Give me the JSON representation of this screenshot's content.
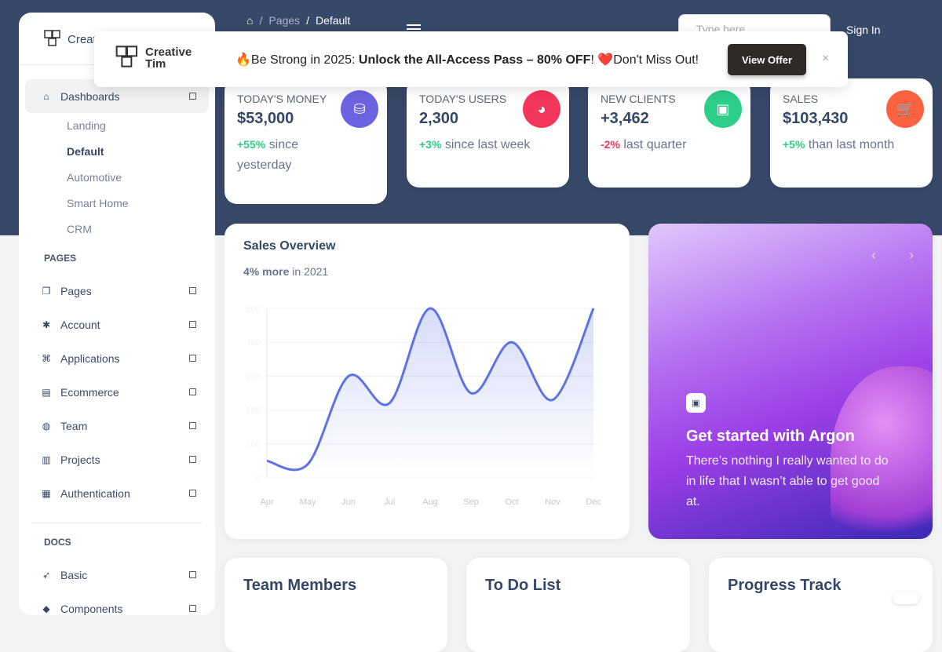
{
  "sidebar": {
    "brand": "Creative Tim",
    "dashboards": "Dashboards",
    "sub": [
      "Landing",
      "Default",
      "Automotive",
      "Smart Home",
      "CRM"
    ],
    "pages_section": "PAGES",
    "items": [
      "Pages",
      "Account",
      "Applications",
      "Ecommerce",
      "Team",
      "Projects",
      "Authentication"
    ],
    "docs_section": "DOCS",
    "docs": [
      "Basic",
      "Components"
    ]
  },
  "header": {
    "crumb_pages": "Pages",
    "crumb_current": "Default",
    "search_placeholder": "Type here...",
    "signin": "Sign In"
  },
  "banner": {
    "logo_line1": "Creative",
    "logo_line2": "Tim",
    "text_pre": "🔥Be Strong in 2025: ",
    "text_bold": "Unlock the All-Access Pass – 80% OFF",
    "text_post": "! ❤️Don't Miss Out!",
    "button": "View Offer",
    "close": "×"
  },
  "stats": [
    {
      "title": "Today's Money",
      "value": "$53,000",
      "change": "+55%",
      "suffix": " since yesterday",
      "color": "#6c63e0",
      "icon": "money-icon"
    },
    {
      "title": "Today's Users",
      "value": "2,300",
      "change": "+3%",
      "suffix": " since last week",
      "color": "#f5365c",
      "icon": "globe-icon"
    },
    {
      "title": "New Clients",
      "value": "+3,462",
      "change": "-2%",
      "suffix": " last quarter",
      "color": "#2dce89",
      "icon": "paper-icon"
    },
    {
      "title": "Sales",
      "value": "$103,430",
      "change": "+5%",
      "suffix": " than last month",
      "color": "#fb6340",
      "icon": "cart-icon"
    }
  ],
  "sales": {
    "title": "Sales Overview",
    "sub_bold": "4% more",
    "sub_rest": " in 2021"
  },
  "chart_data": {
    "type": "area",
    "title": "Sales Overview",
    "x": [
      "Apr",
      "May",
      "Jun",
      "Jul",
      "Aug",
      "Sep",
      "Oct",
      "Nov",
      "Dec"
    ],
    "values": [
      50,
      40,
      300,
      220,
      500,
      250,
      400,
      230,
      500
    ],
    "ylim": [
      0,
      500
    ],
    "yticks": [
      0,
      100,
      200,
      300,
      400,
      500
    ],
    "color": "#5e72e4",
    "grid": true
  },
  "argon": {
    "title": "Get started with Argon",
    "text": "There’s nothing I really wanted to do in life that I wasn’t able to get good at."
  },
  "bottom": [
    "Team Members",
    "To Do List",
    "Progress Track"
  ]
}
